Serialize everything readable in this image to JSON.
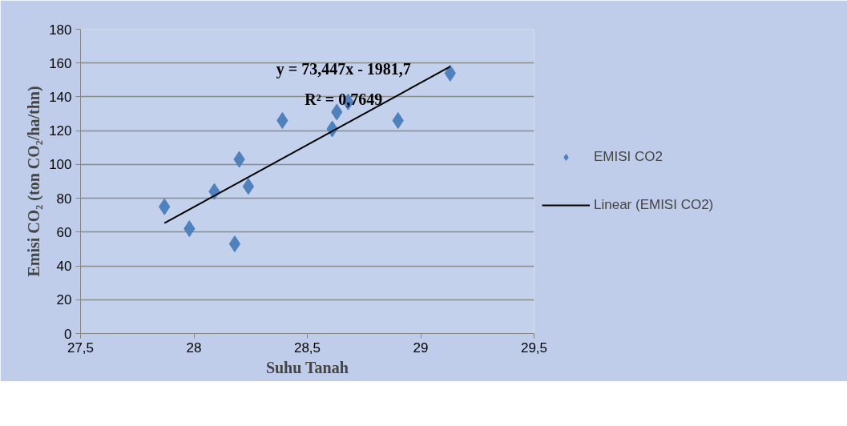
{
  "chart_data": {
    "type": "scatter",
    "xlabel": "Suhu Tanah",
    "ylabel": "Emisi CO₂ (ton CO₂/ha/thn)",
    "annotations": [
      "y = 73,447x - 1981,7",
      "R² = 0,7649"
    ],
    "series": [
      {
        "name": "EMISI CO2",
        "type": "scatter",
        "marker": "diamond",
        "color": "#4f81bd",
        "x": [
          27.87,
          27.98,
          28.09,
          28.18,
          28.2,
          28.24,
          28.39,
          28.61,
          28.63,
          28.68,
          28.9,
          29.13
        ],
        "values": [
          75,
          62,
          84,
          53,
          103,
          87,
          126,
          121,
          131,
          137,
          126,
          154
        ]
      },
      {
        "name": "Linear (EMISI CO2)",
        "type": "line",
        "line_style": "solid",
        "color": "#000000",
        "x": [
          27.87,
          29.13
        ],
        "values": [
          65.3,
          157.9
        ]
      }
    ],
    "xlim": [
      27.5,
      29.5
    ],
    "ylim": [
      0,
      180
    ],
    "xticks": [
      {
        "value": 27.5,
        "label": "27,5"
      },
      28,
      {
        "value": 28.5,
        "label": "28,5"
      },
      29,
      {
        "value": 29.5,
        "label": "29,5"
      }
    ],
    "yticks": [
      0,
      20,
      40,
      60,
      80,
      100,
      120,
      140,
      160,
      180
    ],
    "grid": "y",
    "legend": "right"
  }
}
